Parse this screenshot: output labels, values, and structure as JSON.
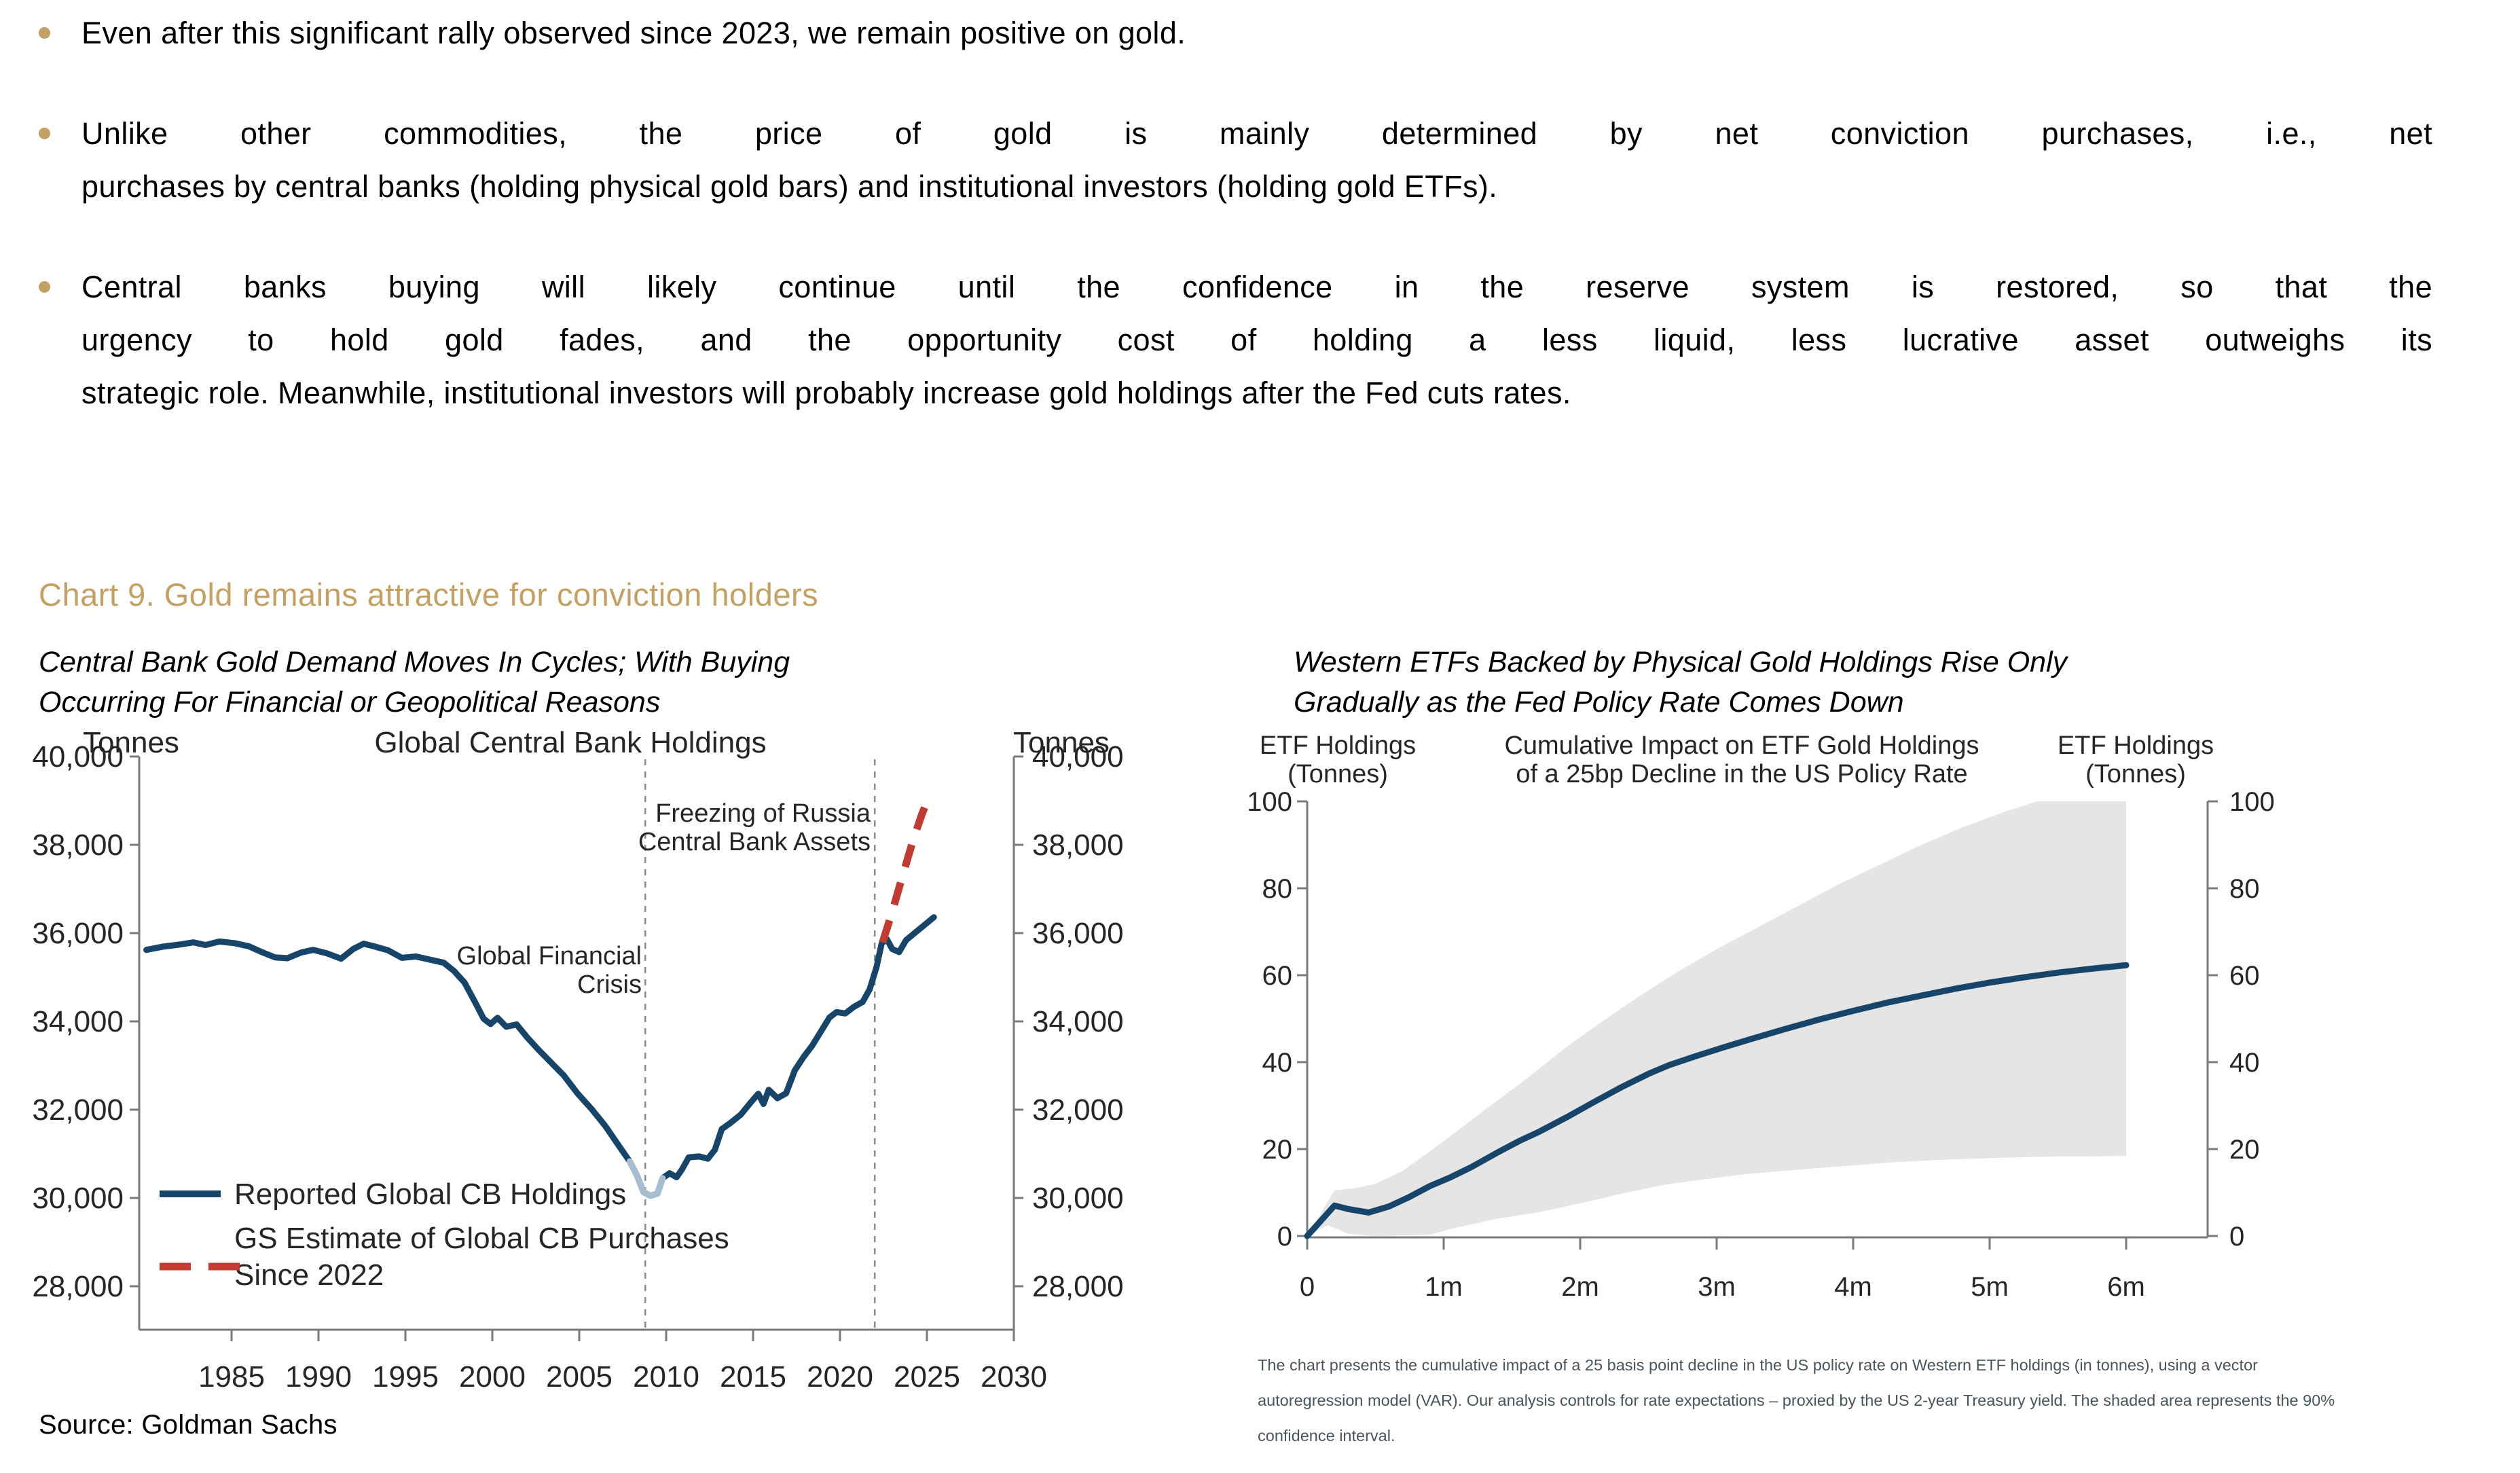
{
  "colors": {
    "gold": "#C5A063",
    "navy": "#164569",
    "light_blue": "#A6BED2",
    "red": "#C23B31",
    "band": "#E5E5E5",
    "axis": "#7A7A7A",
    "chart_text": "#262626",
    "footnote_text": "#4A545C",
    "vline": "#8C8C8C"
  },
  "bullets": [
    {
      "justify": false,
      "lines": [
        "Even after this significant rally observed since 2023, we remain positive on gold."
      ]
    },
    {
      "justify": true,
      "lines": [
        "Unlike other commodities, the price of gold is mainly determined by net conviction purchases, i.e., net",
        "purchases by central banks (holding physical gold bars) and institutional investors (holding gold ETFs)."
      ]
    },
    {
      "justify": true,
      "lines": [
        "Central banks buying will likely continue until the confidence in the reserve system is restored, so that the",
        "urgency to hold gold fades, and the opportunity cost of holding a less liquid, less lucrative asset outweighs its",
        "strategic role. Meanwhile, institutional investors will probably increase gold holdings after the Fed cuts rates."
      ]
    }
  ],
  "heading": "Chart 9. Gold remains attractive for conviction holders",
  "subtitles": {
    "left": [
      "Central Bank Gold Demand Moves In Cycles; With Buying",
      "Occurring For Financial or Geopolitical Reasons"
    ],
    "right": [
      "Western ETFs Backed by Physical Gold Holdings Rise Only",
      "Gradually as the Fed Policy Rate Comes Down"
    ]
  },
  "footnote": [
    "The chart presents the cumulative impact of a 25 basis point decline in the US policy rate on Western ETF holdings (in tonnes), using a vector",
    "autoregression model (VAR). Our analysis controls for rate expectations – proxied by the US 2-year Treasury yield. The shaded area represents the 90%",
    "confidence interval."
  ],
  "source": "Source: Goldman Sachs",
  "chart_data": [
    {
      "type": "line",
      "title": "Global Central Bank Holdings",
      "unit_left": "Tonnes",
      "unit_right": "Tonnes",
      "xlabel": "",
      "ylabel": "Tonnes",
      "xlim": [
        1980,
        2030
      ],
      "ylim": [
        27500,
        40000
      ],
      "grid": false,
      "legend_position": "lower-left",
      "y_ticks": [
        {
          "v": 40000,
          "label": "40,000"
        },
        {
          "v": 38000,
          "label": "38,000"
        },
        {
          "v": 36000,
          "label": "36,000"
        },
        {
          "v": 34000,
          "label": "34,000"
        },
        {
          "v": 32000,
          "label": "32,000"
        },
        {
          "v": 30000,
          "label": "30,000"
        },
        {
          "v": 28000,
          "label": "28,000"
        }
      ],
      "x_ticks": [
        1985,
        1990,
        1995,
        2000,
        2005,
        2010,
        2015,
        2020,
        2025,
        2030
      ],
      "vlines": [
        {
          "x": 2008.8,
          "label": [
            "Global Financial",
            "Crisis"
          ]
        },
        {
          "x": 2022.0,
          "label": [
            "Freezing of Russia",
            "Central Bank Assets"
          ]
        }
      ],
      "series": [
        {
          "name": "Reported Global CB Holdings",
          "color": "navy",
          "style": "solid",
          "points": [
            [
              1980.1,
              35620
            ],
            [
              1981,
              35690
            ],
            [
              1982,
              35740
            ],
            [
              1982.8,
              35790
            ],
            [
              1983.5,
              35730
            ],
            [
              1984.3,
              35810
            ],
            [
              1985.2,
              35770
            ],
            [
              1986,
              35700
            ],
            [
              1986.8,
              35560
            ],
            [
              1987.5,
              35450
            ],
            [
              1988.2,
              35430
            ],
            [
              1989,
              35560
            ],
            [
              1989.7,
              35620
            ],
            [
              1990.5,
              35540
            ],
            [
              1991.3,
              35420
            ],
            [
              1992,
              35640
            ],
            [
              1992.6,
              35760
            ],
            [
              1993.2,
              35700
            ],
            [
              1994,
              35610
            ],
            [
              1994.8,
              35440
            ],
            [
              1995.6,
              35470
            ],
            [
              1996.4,
              35400
            ],
            [
              1997.2,
              35330
            ],
            [
              1997.8,
              35140
            ],
            [
              1998.4,
              34880
            ],
            [
              1999,
              34440
            ],
            [
              1999.5,
              34060
            ],
            [
              1999.9,
              33940
            ],
            [
              2000.3,
              34080
            ],
            [
              2000.8,
              33880
            ],
            [
              2001.4,
              33930
            ],
            [
              2002,
              33640
            ],
            [
              2002.7,
              33340
            ],
            [
              2003.4,
              33060
            ],
            [
              2004.1,
              32780
            ],
            [
              2004.9,
              32370
            ],
            [
              2005.7,
              32020
            ],
            [
              2006.5,
              31630
            ],
            [
              2007.3,
              31170
            ],
            [
              2007.9,
              30830
            ],
            [
              2008.3,
              30530
            ],
            [
              2008.7,
              30130
            ],
            [
              2009.1,
              30050
            ],
            [
              2009.5,
              30100
            ],
            [
              2009.8,
              30450
            ],
            [
              2010.2,
              30560
            ],
            [
              2010.6,
              30470
            ],
            [
              2010.9,
              30640
            ],
            [
              2011.3,
              30920
            ],
            [
              2011.9,
              30940
            ],
            [
              2012.4,
              30890
            ],
            [
              2012.8,
              31090
            ],
            [
              2013.2,
              31560
            ],
            [
              2013.7,
              31700
            ],
            [
              2014.3,
              31890
            ],
            [
              2014.9,
              32180
            ],
            [
              2015.3,
              32360
            ],
            [
              2015.6,
              32130
            ],
            [
              2015.9,
              32450
            ],
            [
              2016.4,
              32260
            ],
            [
              2016.9,
              32370
            ],
            [
              2017.4,
              32890
            ],
            [
              2017.9,
              33190
            ],
            [
              2018.4,
              33450
            ],
            [
              2018.9,
              33770
            ],
            [
              2019.4,
              34090
            ],
            [
              2019.8,
              34210
            ],
            [
              2020.3,
              34180
            ],
            [
              2020.8,
              34330
            ],
            [
              2021.3,
              34440
            ],
            [
              2021.7,
              34720
            ],
            [
              2022.1,
              35230
            ],
            [
              2022.4,
              35770
            ],
            [
              2022.7,
              35860
            ],
            [
              2023,
              35640
            ],
            [
              2023.4,
              35570
            ],
            [
              2023.8,
              35840
            ],
            [
              2024.2,
              35970
            ],
            [
              2024.6,
              36100
            ],
            [
              2025,
              36230
            ],
            [
              2025.4,
              36360
            ]
          ]
        },
        {
          "name": "GFC trough segment (lighter)",
          "color": "light_blue",
          "style": "solid",
          "points": [
            [
              2007.9,
              30830
            ],
            [
              2008.3,
              30530
            ],
            [
              2008.7,
              30130
            ],
            [
              2009.1,
              30050
            ],
            [
              2009.5,
              30100
            ],
            [
              2009.8,
              30450
            ]
          ]
        },
        {
          "name": "GS Estimate of Global CB Purchases Since 2022",
          "color": "red",
          "style": "dashed",
          "points": [
            [
              2022.45,
              35790
            ],
            [
              2023.0,
              36480
            ],
            [
              2023.6,
              37300
            ],
            [
              2024.2,
              38100
            ],
            [
              2024.7,
              38680
            ],
            [
              2025.0,
              38980
            ]
          ]
        }
      ],
      "legend": [
        {
          "label": "Reported Global CB Holdings",
          "label2": "",
          "color": "navy",
          "style": "solid"
        },
        {
          "label": "GS Estimate of Global CB Purchases",
          "label2": "Since 2022",
          "color": "red",
          "style": "dashed"
        }
      ]
    },
    {
      "type": "line",
      "title_lines": [
        "Cumulative Impact on ETF Gold Holdings",
        "of a 25bp Decline in the US Policy Rate"
      ],
      "unit_left_lines": [
        "ETF Holdings",
        "(Tonnes)"
      ],
      "unit_right_lines": [
        "ETF Holdings",
        "(Tonnes)"
      ],
      "xlim_months": [
        0,
        6
      ],
      "ylim": [
        0,
        100
      ],
      "grid": false,
      "y_ticks": [
        0,
        20,
        40,
        60,
        80,
        100
      ],
      "x_ticks": [
        "0",
        "1m",
        "2m",
        "3m",
        "4m",
        "5m",
        "6m"
      ],
      "band": {
        "name": "90% confidence interval",
        "upper": [
          [
            0,
            0
          ],
          [
            0.2,
            10.5
          ],
          [
            0.35,
            11
          ],
          [
            0.5,
            12
          ],
          [
            0.7,
            15
          ],
          [
            0.9,
            19.5
          ],
          [
            1.05,
            23
          ],
          [
            1.3,
            29
          ],
          [
            1.6,
            36
          ],
          [
            1.9,
            43.5
          ],
          [
            2.1,
            48
          ],
          [
            2.4,
            54.5
          ],
          [
            2.7,
            60.5
          ],
          [
            3,
            66
          ],
          [
            3.3,
            71
          ],
          [
            3.6,
            76
          ],
          [
            3.9,
            81
          ],
          [
            4.2,
            85.5
          ],
          [
            4.5,
            90
          ],
          [
            4.8,
            94
          ],
          [
            5.1,
            97.5
          ],
          [
            5.35,
            100
          ],
          [
            6,
            100
          ]
        ],
        "lower": [
          [
            0,
            0
          ],
          [
            0.15,
            2.5
          ],
          [
            0.3,
            0.5
          ],
          [
            0.5,
            0
          ],
          [
            0.9,
            0.3
          ],
          [
            1.1,
            2
          ],
          [
            1.4,
            4
          ],
          [
            1.7,
            5.5
          ],
          [
            2,
            7.5
          ],
          [
            2.3,
            9.7
          ],
          [
            2.6,
            11.7
          ],
          [
            2.9,
            13
          ],
          [
            3.2,
            14.2
          ],
          [
            3.5,
            15
          ],
          [
            3.9,
            16
          ],
          [
            4.3,
            17
          ],
          [
            4.7,
            17.6
          ],
          [
            5.1,
            18
          ],
          [
            5.5,
            18.3
          ],
          [
            6,
            18.4
          ]
        ]
      },
      "series": [
        {
          "name": "Cumulative impact on ETF gold holdings",
          "color": "navy",
          "style": "solid",
          "points": [
            [
              0,
              0
            ],
            [
              0.1,
              3.5
            ],
            [
              0.2,
              7
            ],
            [
              0.3,
              6.2
            ],
            [
              0.45,
              5.4
            ],
            [
              0.6,
              6.8
            ],
            [
              0.75,
              9
            ],
            [
              0.9,
              11.5
            ],
            [
              1.05,
              13.5
            ],
            [
              1.2,
              15.8
            ],
            [
              1.4,
              19.3
            ],
            [
              1.55,
              21.8
            ],
            [
              1.7,
              24
            ],
            [
              1.9,
              27.3
            ],
            [
              2.1,
              30.8
            ],
            [
              2.3,
              34.2
            ],
            [
              2.5,
              37.3
            ],
            [
              2.65,
              39.3
            ],
            [
              2.85,
              41.4
            ],
            [
              3.05,
              43.4
            ],
            [
              3.25,
              45.3
            ],
            [
              3.5,
              47.6
            ],
            [
              3.75,
              49.8
            ],
            [
              4,
              51.8
            ],
            [
              4.25,
              53.7
            ],
            [
              4.5,
              55.3
            ],
            [
              4.75,
              56.9
            ],
            [
              5,
              58.3
            ],
            [
              5.25,
              59.5
            ],
            [
              5.5,
              60.6
            ],
            [
              5.75,
              61.5
            ],
            [
              6,
              62.3
            ]
          ]
        }
      ]
    }
  ]
}
